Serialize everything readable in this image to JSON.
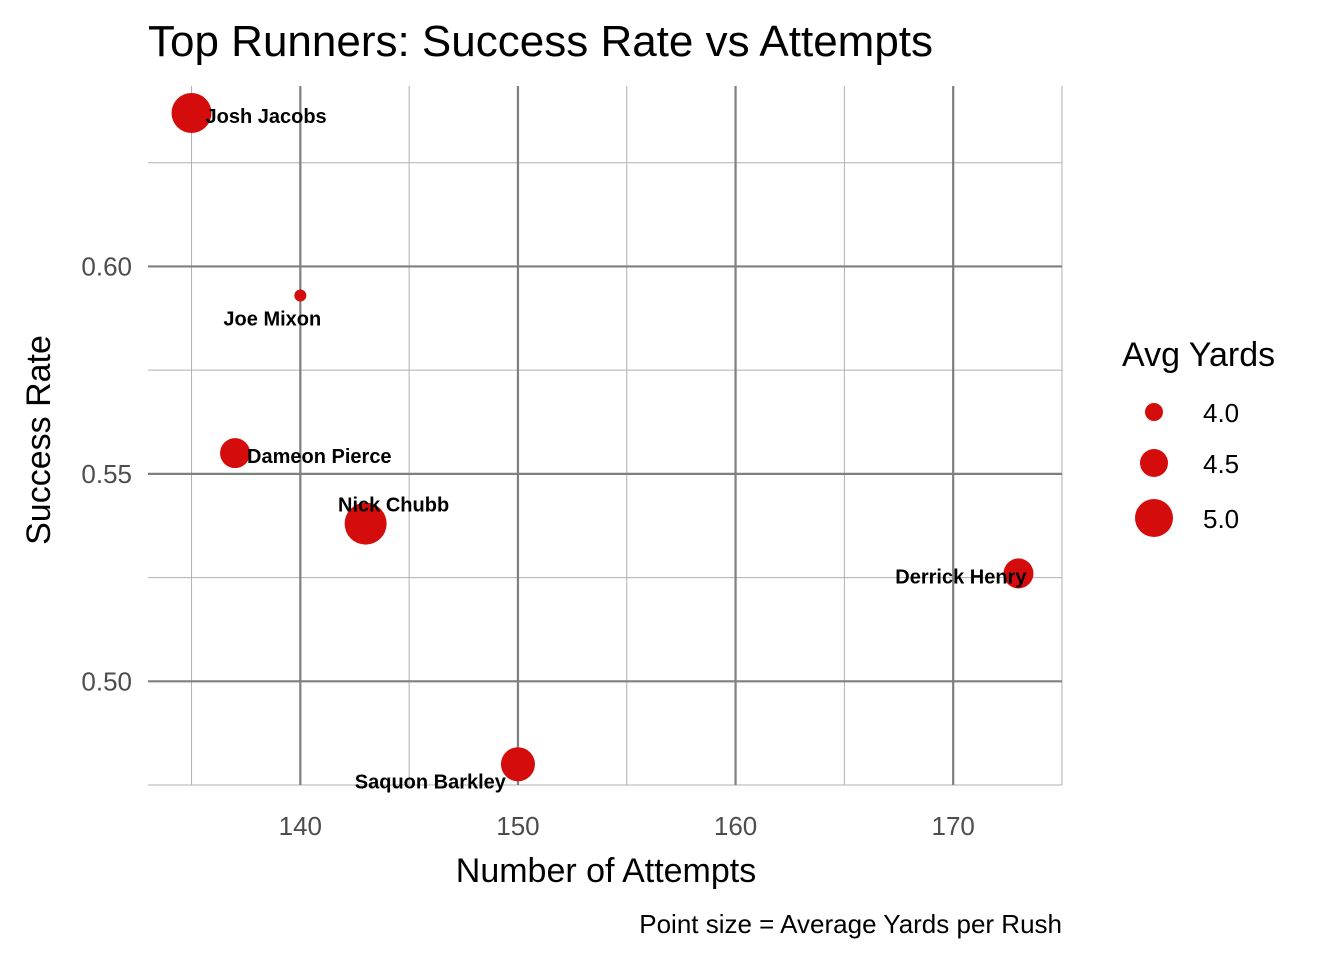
{
  "chart_data": {
    "type": "scatter",
    "title": "Top Runners: Success Rate vs Attempts",
    "xlabel": "Number of Attempts",
    "ylabel": "Success Rate",
    "caption": "Point size = Average Yards per Rush",
    "xlim": [
      133,
      175
    ],
    "ylim": [
      0.475,
      0.6435
    ],
    "x_ticks": [
      140,
      150,
      160,
      170
    ],
    "x_tick_labels": [
      "140",
      "150",
      "160",
      "170"
    ],
    "y_ticks": [
      0.5,
      0.55,
      0.6
    ],
    "y_tick_labels": [
      "0.50",
      "0.55",
      "0.60"
    ],
    "grid": true,
    "point_color": "#d40c0c",
    "points": [
      {
        "label": "Josh Jacobs",
        "x": 135,
        "y": 0.637,
        "avg_yards": 5.1
      },
      {
        "label": "Joe Mixon",
        "x": 140,
        "y": 0.593,
        "avg_yards": 3.7
      },
      {
        "label": "Dameon Pierce",
        "x": 137,
        "y": 0.555,
        "avg_yards": 4.6
      },
      {
        "label": "Nick Chubb",
        "x": 143,
        "y": 0.538,
        "avg_yards": 5.2
      },
      {
        "label": "Derrick Henry",
        "x": 173,
        "y": 0.526,
        "avg_yards": 4.6
      },
      {
        "label": "Saquon Barkley",
        "x": 150,
        "y": 0.48,
        "avg_yards": 4.8
      }
    ],
    "legend": {
      "title": "Avg Yards",
      "position": "right",
      "entries": [
        {
          "label": "4.0",
          "value": 4.0
        },
        {
          "label": "4.5",
          "value": 4.5
        },
        {
          "label": "5.0",
          "value": 5.0
        }
      ]
    }
  }
}
